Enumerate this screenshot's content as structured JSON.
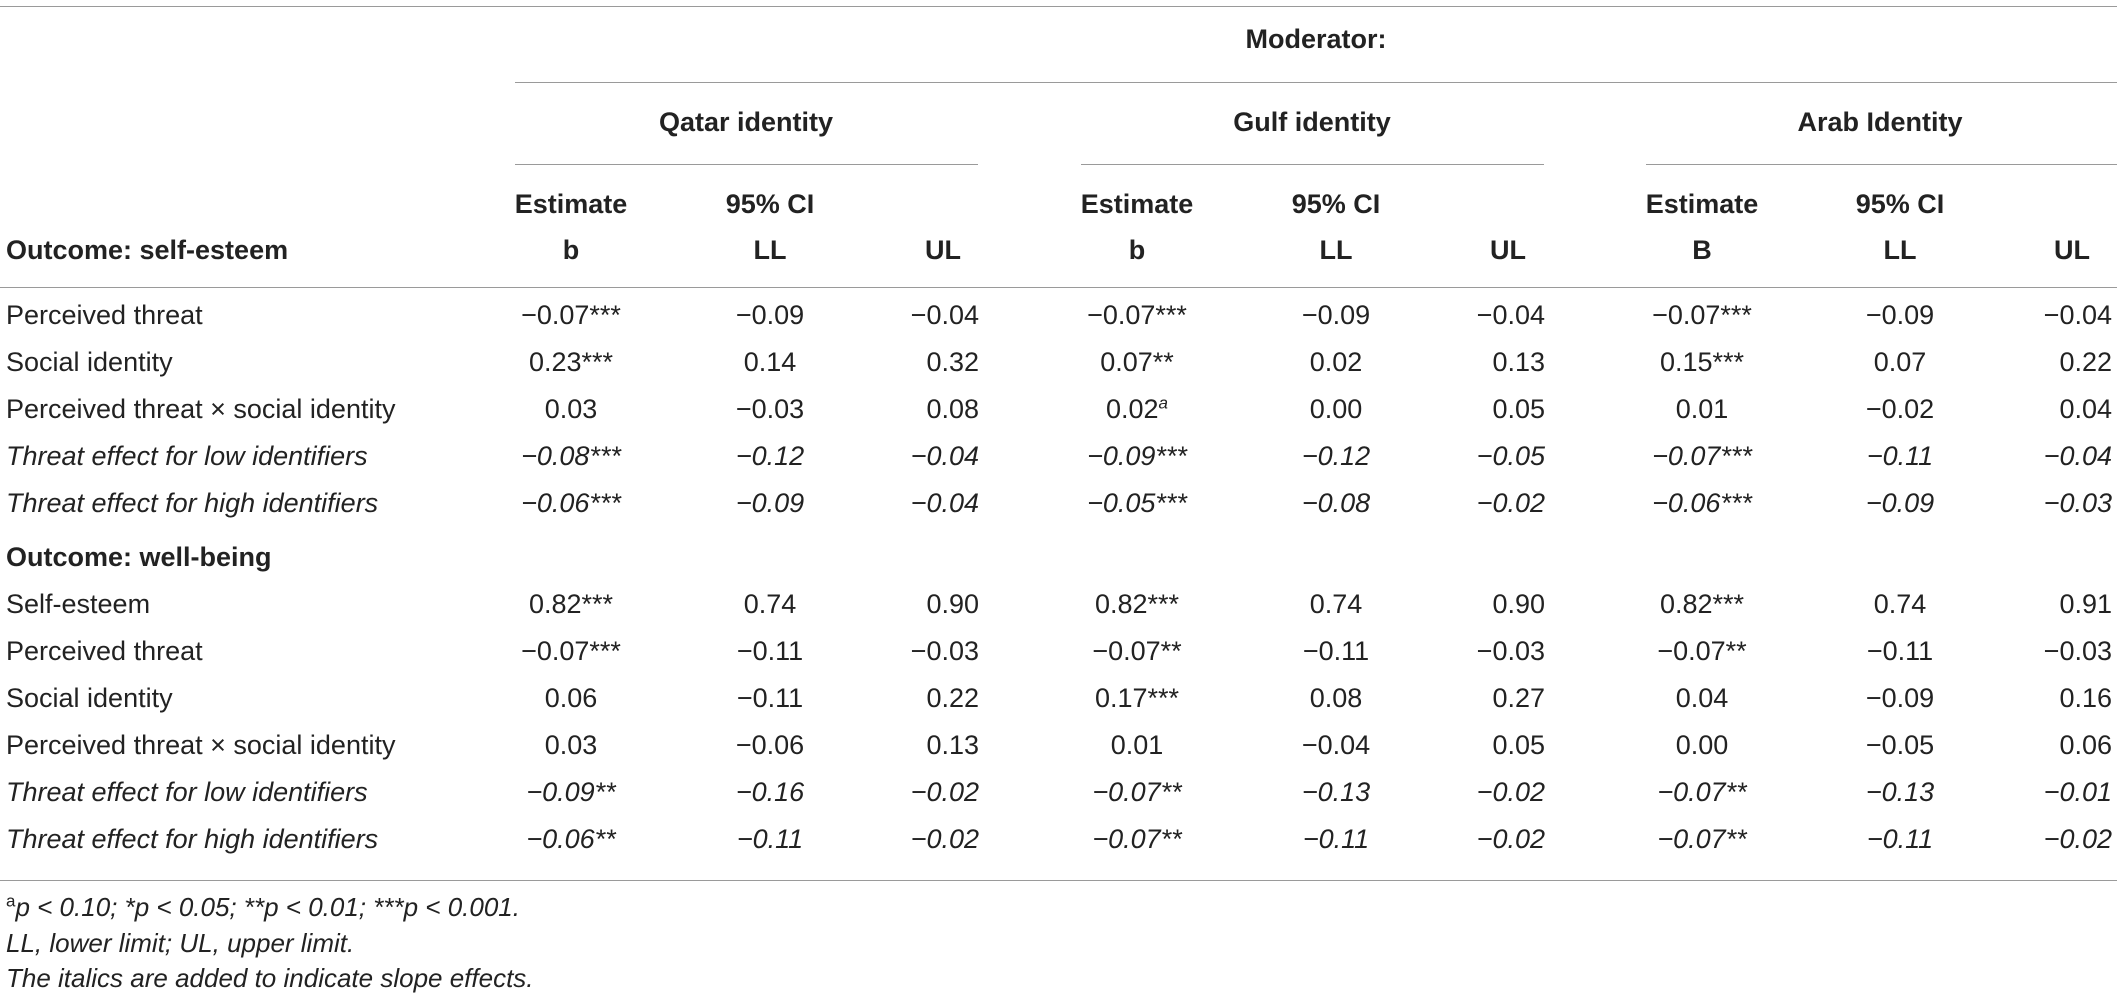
{
  "header": {
    "moderator_label": "Moderator:",
    "groups": [
      "Qatar identity",
      "Gulf identity",
      "Arab Identity"
    ],
    "estimate_label": "Estimate",
    "ci_label": "95% CI",
    "stub_label": "Outcome: self-esteem",
    "sub_labels": [
      [
        "b",
        "LL",
        "UL"
      ],
      [
        "b",
        "LL",
        "UL"
      ],
      [
        "B",
        "LL",
        "UL"
      ]
    ]
  },
  "section2_label": "Outcome: well-being",
  "rows": [
    {
      "label": "Perceived threat",
      "italic": false,
      "cells": [
        [
          "−0.07***",
          "−0.09",
          "−0.04"
        ],
        [
          "−0.07***",
          "−0.09",
          "−0.04"
        ],
        [
          "−0.07***",
          "−0.09",
          "−0.04"
        ]
      ]
    },
    {
      "label": "Social identity",
      "italic": false,
      "cells": [
        [
          "0.23***",
          "0.14",
          "0.32"
        ],
        [
          "0.07**",
          "0.02",
          "0.13"
        ],
        [
          "0.15***",
          "0.07",
          "0.22"
        ]
      ]
    },
    {
      "label": "Perceived threat × social identity",
      "italic": false,
      "cells": [
        [
          "0.03",
          "−0.03",
          "0.08"
        ],
        [
          "0.02",
          "0.00",
          "0.05"
        ],
        [
          "0.01",
          "−0.02",
          "0.04"
        ]
      ]
    },
    {
      "label": "Threat effect for low identifiers",
      "italic": true,
      "cells": [
        [
          "−0.08***",
          "−0.12",
          "−0.04"
        ],
        [
          "−0.09***",
          "−0.12",
          "−0.05"
        ],
        [
          "−0.07***",
          "−0.11",
          "−0.04"
        ]
      ]
    },
    {
      "label": "Threat effect for high identifiers",
      "italic": true,
      "cells": [
        [
          "−0.06***",
          "−0.09",
          "−0.04"
        ],
        [
          "−0.05***",
          "−0.08",
          "−0.02"
        ],
        [
          "−0.06***",
          "−0.09",
          "−0.03"
        ]
      ]
    },
    {
      "label": "Self-esteem",
      "italic": false,
      "cells": [
        [
          "0.82***",
          "0.74",
          "0.90"
        ],
        [
          "0.82***",
          "0.74",
          "0.90"
        ],
        [
          "0.82***",
          "0.74",
          "0.91"
        ]
      ]
    },
    {
      "label": "Perceived threat",
      "italic": false,
      "cells": [
        [
          "−0.07***",
          "−0.11",
          "−0.03"
        ],
        [
          "−0.07**",
          "−0.11",
          "−0.03"
        ],
        [
          "−0.07**",
          "−0.11",
          "−0.03"
        ]
      ]
    },
    {
      "label": "Social identity",
      "italic": false,
      "cells": [
        [
          "0.06",
          "−0.11",
          "0.22"
        ],
        [
          "0.17***",
          "0.08",
          "0.27"
        ],
        [
          "0.04",
          "−0.09",
          "0.16"
        ]
      ]
    },
    {
      "label": "Perceived threat × social identity",
      "italic": false,
      "cells": [
        [
          "0.03",
          "−0.06",
          "0.13"
        ],
        [
          "0.01",
          "−0.04",
          "0.05"
        ],
        [
          "0.00",
          "−0.05",
          "0.06"
        ]
      ]
    },
    {
      "label": "Threat effect for low identifiers",
      "italic": true,
      "cells": [
        [
          "−0.09**",
          "−0.16",
          "−0.02"
        ],
        [
          "−0.07**",
          "−0.13",
          "−0.02"
        ],
        [
          "−0.07**",
          "−0.13",
          "−0.01"
        ]
      ]
    },
    {
      "label": "Threat effect for high identifiers",
      "italic": true,
      "cells": [
        [
          "−0.06**",
          "−0.11",
          "−0.02"
        ],
        [
          "−0.07**",
          "−0.11",
          "−0.02"
        ],
        [
          "−0.07**",
          "−0.11",
          "−0.02"
        ]
      ]
    }
  ],
  "superscript_a": "a",
  "footnotes": {
    "sig_marker": "a",
    "sig_text": "p < 0.10; *p < 0.05; **p < 0.01; ***p < 0.001.",
    "abbrev": "LL, lower limit; UL, upper limit.",
    "italics_note": "The italics are added to indicate slope effects."
  }
}
